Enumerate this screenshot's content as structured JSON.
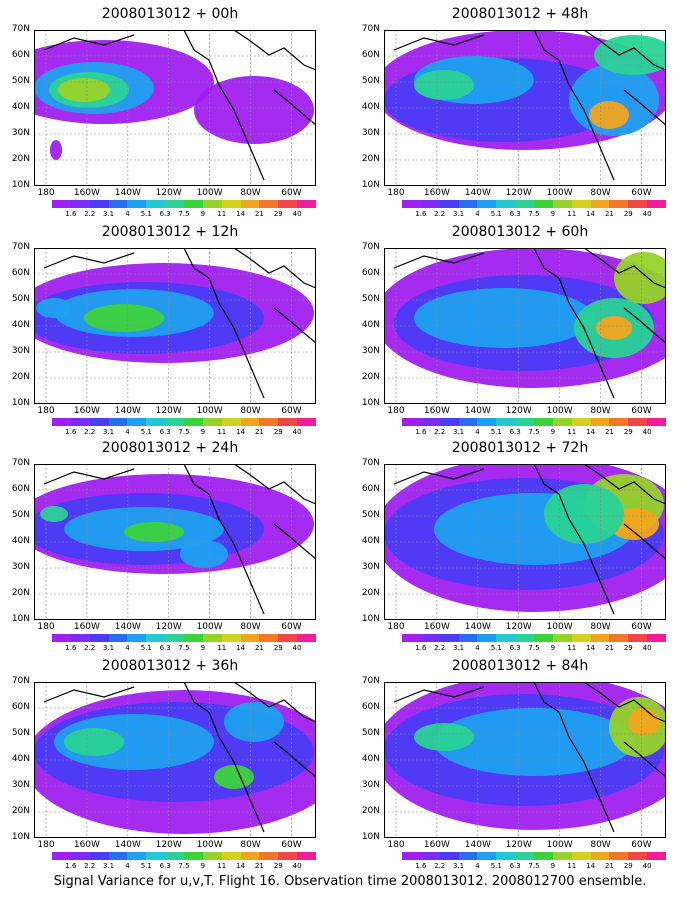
{
  "figure": {
    "caption": "Signal Variance for u,v,T. Flight 16. Observation time 2008013012. 2008012700 ensemble.",
    "lat_ticks": [
      "70N",
      "60N",
      "50N",
      "40N",
      "30N",
      "20N",
      "10N"
    ],
    "lon_ticks": [
      "180",
      "160W",
      "140W",
      "120W",
      "100W",
      "80W",
      "60W"
    ],
    "colorbar": {
      "labels": [
        "1.6",
        "2.2",
        "3.1",
        "4",
        "5.1",
        "6.3",
        "7.5",
        "9",
        "11",
        "14",
        "21",
        "29",
        "40"
      ],
      "colors": [
        "#a020f0",
        "#7b2cf5",
        "#4a3cf5",
        "#2a6ef0",
        "#1ea0f0",
        "#22c8d2",
        "#2ad296",
        "#3cd23c",
        "#96d22a",
        "#d2d21e",
        "#f0a51e",
        "#f07828",
        "#f04646",
        "#f01e9b"
      ]
    },
    "panels": [
      {
        "title": "2008013012 + 00h"
      },
      {
        "title": "2008013012 + 48h"
      },
      {
        "title": "2008013012 + 12h"
      },
      {
        "title": "2008013012 + 60h"
      },
      {
        "title": "2008013012 + 24h"
      },
      {
        "title": "2008013012 + 72h"
      },
      {
        "title": "2008013012 + 36h"
      },
      {
        "title": "2008013012 + 84h"
      }
    ]
  }
}
